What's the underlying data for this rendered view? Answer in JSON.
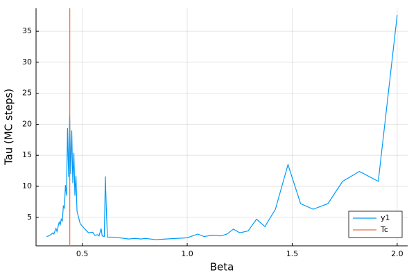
{
  "chart_data": {
    "type": "line",
    "xlabel": "Beta",
    "ylabel": "Tau (MC steps)",
    "x": [
      0.33,
      0.34,
      0.35,
      0.36,
      0.365,
      0.37,
      0.375,
      0.38,
      0.385,
      0.39,
      0.395,
      0.4,
      0.405,
      0.41,
      0.415,
      0.42,
      0.425,
      0.43,
      0.435,
      0.44,
      0.445,
      0.45,
      0.455,
      0.46,
      0.465,
      0.47,
      0.475,
      0.49,
      0.51,
      0.53,
      0.55,
      0.56,
      0.575,
      0.58,
      0.59,
      0.595,
      0.605,
      0.61,
      0.615,
      0.62,
      0.65,
      0.7,
      0.72,
      0.75,
      0.78,
      0.8,
      0.85,
      0.9,
      0.95,
      1.0,
      1.05,
      1.08,
      1.12,
      1.16,
      1.19,
      1.22,
      1.25,
      1.29,
      1.33,
      1.37,
      1.42,
      1.48,
      1.54,
      1.6,
      1.67,
      1.74,
      1.82,
      1.91,
      2.0
    ],
    "series": [
      {
        "name": "y1",
        "color": "#009af9",
        "values": [
          1.9,
          2.0,
          2.2,
          2.5,
          2.3,
          2.8,
          3.2,
          2.7,
          3.5,
          4.2,
          3.8,
          4.7,
          4.4,
          6.8,
          6.5,
          10.2,
          8.5,
          19.4,
          11.5,
          21.5,
          12.0,
          19.0,
          10.5,
          15.4,
          8.5,
          11.7,
          6.0,
          4.0,
          3.2,
          2.5,
          2.6,
          2.1,
          2.2,
          2.0,
          3.2,
          2.0,
          1.9,
          11.6,
          6.0,
          1.8,
          1.8,
          1.6,
          1.5,
          1.6,
          1.5,
          1.6,
          1.4,
          1.5,
          1.6,
          1.7,
          2.3,
          1.9,
          2.1,
          2.0,
          2.3,
          3.1,
          2.5,
          2.8,
          4.7,
          3.5,
          6.3,
          13.5,
          7.2,
          6.3,
          7.2,
          10.8,
          12.4,
          10.8,
          37.6
        ]
      },
      {
        "name": "Tc",
        "color": "#e26f46",
        "vline": 0.4407
      }
    ],
    "xlim": [
      0.28,
      2.05
    ],
    "xticks": [
      0.5,
      {
        "value": 1,
        "label": "1.0"
      },
      1.5,
      {
        "value": 2,
        "label": "2.0"
      }
    ],
    "ylim": [
      0.4,
      38.7
    ],
    "yticks": [
      5,
      10,
      15,
      20,
      25,
      30,
      35
    ],
    "grid": true,
    "legend": "bottom right"
  }
}
